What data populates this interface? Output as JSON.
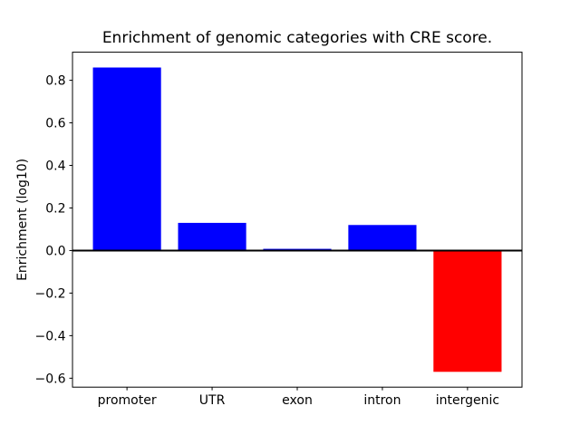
{
  "figure": {
    "background": "#ffffff"
  },
  "chart_data": {
    "type": "bar",
    "title": "Enrichment of genomic categories with CRE score.",
    "xlabel": "",
    "ylabel": "Enrichment (log10)",
    "categories": [
      "promoter",
      "UTR",
      "exon",
      "intron",
      "intergenic"
    ],
    "values": [
      0.86,
      0.13,
      0.008,
      0.12,
      -0.57
    ],
    "bar_colors": [
      "#0000ff",
      "#0000ff",
      "#0000ff",
      "#0000ff",
      "#ff0000"
    ],
    "positive_color": "#0000ff",
    "negative_color": "#ff0000",
    "bar_width": 0.8,
    "yticks": [
      0.8,
      0.6,
      0.4,
      0.2,
      0.0,
      -0.2,
      -0.4,
      -0.6
    ],
    "ylim": [
      -0.642,
      0.932
    ],
    "xlim": [
      -0.64,
      4.64
    ],
    "grid": false,
    "legend": null,
    "zero_line_color": "#000000",
    "axis_color": "#000000",
    "text_color": "#000000"
  }
}
